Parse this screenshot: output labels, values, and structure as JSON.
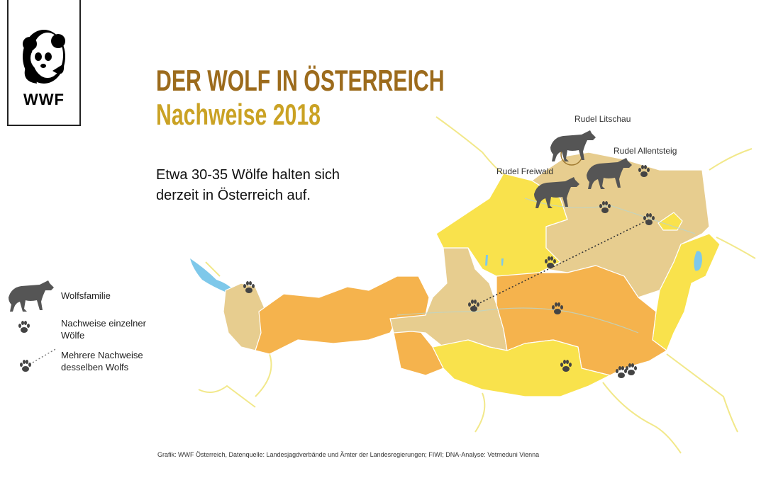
{
  "logo": {
    "text": "WWF"
  },
  "header": {
    "title": "DER WOLF IN ÖSTERREICH",
    "subtitle": "Nachweise 2018"
  },
  "intro": "Etwa 30-35 Wölfe halten sich derzeit in Österreich auf.",
  "packs": [
    {
      "label": "Rudel Litschau"
    },
    {
      "label": "Rudel Allentsteig"
    },
    {
      "label": "Rudel Freiwald"
    }
  ],
  "legend": {
    "family": "Wolfsfamilie",
    "single": "Nachweise einzelner Wölfe",
    "multiple": "Mehrere Nachweise desselben Wolfs"
  },
  "colors": {
    "yellow": "#f9e24c",
    "orange": "#f5b34d",
    "tan": "#e7cd8f",
    "wolf": "#555555",
    "water": "#7ec8ea",
    "river": "#f2e88a",
    "title": "#9c6b1c",
    "subtitle": "#caa224"
  },
  "icons": [
    "panda-logo",
    "wolf-icon",
    "paw-print-icon"
  ],
  "footer": "Grafik: WWF Österreich, Datenquelle: Landesjagdverbände und Ämter der Landesregierungen; FIWI; DNA-Analyse: Vetmeduni Vienna"
}
